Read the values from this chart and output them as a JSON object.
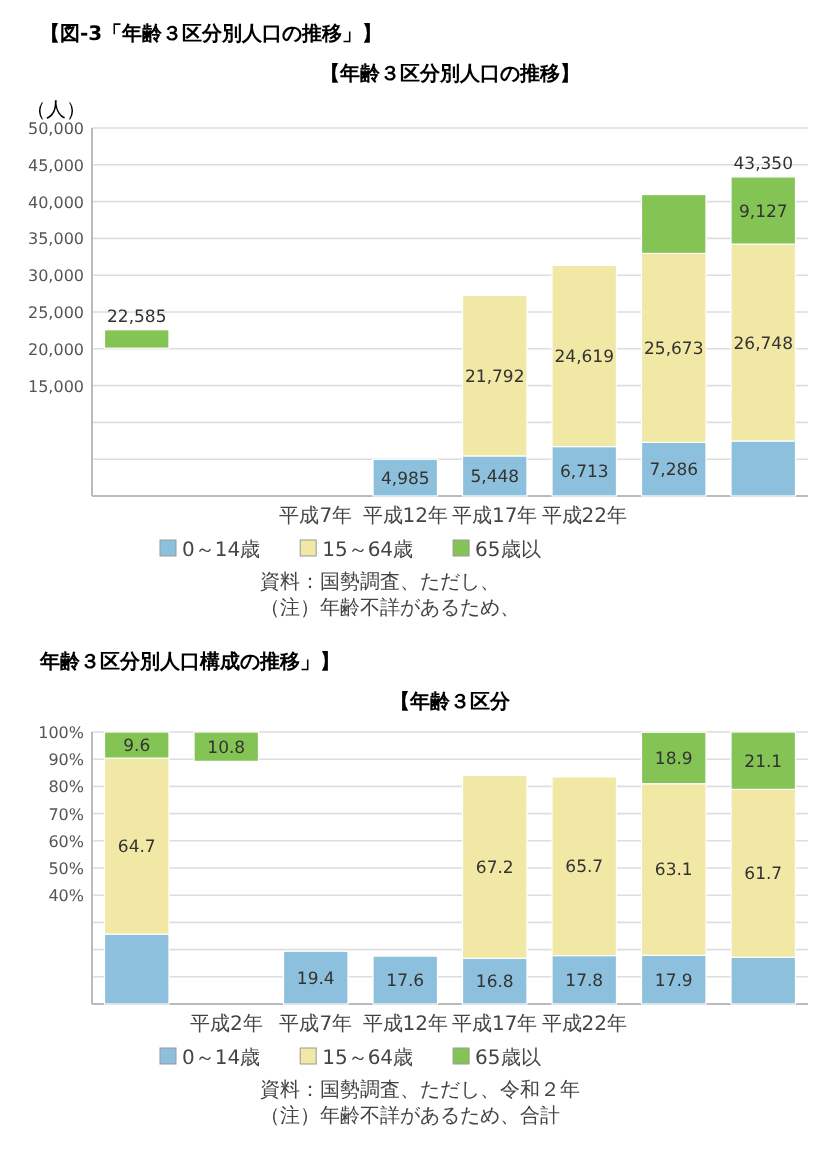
{
  "chart_data": [
    {
      "type": "bar",
      "stacked": true,
      "title": "【年齢３区分別人口の推移】",
      "subtitle": "【図-3「年齢３区分別人口の推移」】",
      "ylabel": "（人）",
      "categories": [
        null,
        null,
        "平成7年",
        "平成12年",
        "平成17年",
        "平成22年",
        null,
        null
      ],
      "ylim": [
        0,
        50000
      ],
      "yticks": [
        {
          "value": 0,
          "label": null
        },
        {
          "value": 5000,
          "label": null
        },
        {
          "value": 10000,
          "label": null
        },
        {
          "value": 15000,
          "label": "15,000"
        },
        {
          "value": 20000,
          "label": "20,000"
        },
        {
          "value": 25000,
          "label": "25,000"
        },
        {
          "value": 30000,
          "label": "30,000"
        },
        {
          "value": 35000,
          "label": "35,000"
        },
        {
          "value": 40000,
          "label": "40,000"
        },
        {
          "value": 45000,
          "label": "45,000"
        },
        {
          "value": 50000,
          "label": "50,000"
        }
      ],
      "grid": "y",
      "legend": "bottom",
      "series": [
        {
          "name": "0～14歳",
          "color": "#8cc0dc",
          "values": [
            null,
            null,
            null,
            4985,
            5448,
            6713,
            7286,
            7475
          ],
          "value_labels": [
            null,
            null,
            null,
            "4,985",
            "5,448",
            "6,713",
            "7,286",
            null
          ]
        },
        {
          "name": "15～64歳",
          "color": "#f0e8a4",
          "values": [
            null,
            null,
            null,
            null,
            21792,
            24619,
            25673,
            26748
          ],
          "value_labels": [
            null,
            null,
            null,
            null,
            "21,792",
            "24,619",
            "25,673",
            "26,748"
          ]
        },
        {
          "name": "65歳以",
          "color": "#84c455",
          "values": [
            2500,
            null,
            null,
            null,
            null,
            null,
            8000,
            9127
          ],
          "base": [
            20085,
            null,
            null,
            null,
            null,
            null,
            null,
            null
          ],
          "value_labels": [
            null,
            null,
            null,
            null,
            null,
            null,
            null,
            "9,127"
          ]
        }
      ],
      "totals": [
        null,
        null,
        null,
        null,
        null,
        null,
        null,
        "43,350"
      ],
      "annotations": [
        {
          "text": "22,585",
          "y": 22585
        },
        "資料：国勢調査、ただし、",
        "（注）年齢不詳があるため、"
      ]
    },
    {
      "type": "bar",
      "stacked": true,
      "title": "【年齢３区分",
      "subtitle": "年齢３区分別人口構成の推移」】",
      "categories": [
        null,
        "平成2年",
        "平成7年",
        "平成12年",
        "平成17年",
        "平成22年",
        null,
        null
      ],
      "ylim": [
        0,
        100
      ],
      "yticks": [
        {
          "value": 0,
          "label": null
        },
        {
          "value": 10,
          "label": null
        },
        {
          "value": 20,
          "label": null
        },
        {
          "value": 30,
          "label": null
        },
        {
          "value": 40,
          "label": "40%"
        },
        {
          "value": 50,
          "label": "50%"
        },
        {
          "value": 60,
          "label": "60%"
        },
        {
          "value": 70,
          "label": "70%"
        },
        {
          "value": 80,
          "label": "80%"
        },
        {
          "value": 90,
          "label": "90%"
        },
        {
          "value": 100,
          "label": "100%"
        }
      ],
      "grid": "y",
      "legend": "bottom",
      "series": [
        {
          "name": "0～14歳",
          "color": "#8cc0dc",
          "values": [
            25.7,
            null,
            19.4,
            17.6,
            16.8,
            17.8,
            17.9,
            17.2
          ],
          "value_labels": [
            null,
            null,
            "19.4",
            "17.6",
            "16.8",
            "17.8",
            "17.9",
            null
          ]
        },
        {
          "name": "15～64歳",
          "color": "#f0e8a4",
          "values": [
            64.7,
            null,
            null,
            null,
            67.2,
            65.7,
            63.1,
            61.7
          ],
          "value_labels": [
            "64.7",
            null,
            null,
            null,
            "67.2",
            "65.7",
            "63.1",
            "61.7"
          ]
        },
        {
          "name": "65歳以",
          "color": "#84c455",
          "values": [
            9.6,
            10.8,
            null,
            null,
            null,
            null,
            18.9,
            21.1
          ],
          "base": [
            null,
            89.2,
            null,
            null,
            null,
            null,
            null,
            null
          ],
          "value_labels": [
            "9.6",
            "10.8",
            null,
            null,
            null,
            null,
            "18.9",
            "21.1"
          ]
        }
      ],
      "annotations": [
        "資料：国勢調査、ただし、令和２年",
        "（注）年齢不詳があるため、合計"
      ]
    }
  ]
}
